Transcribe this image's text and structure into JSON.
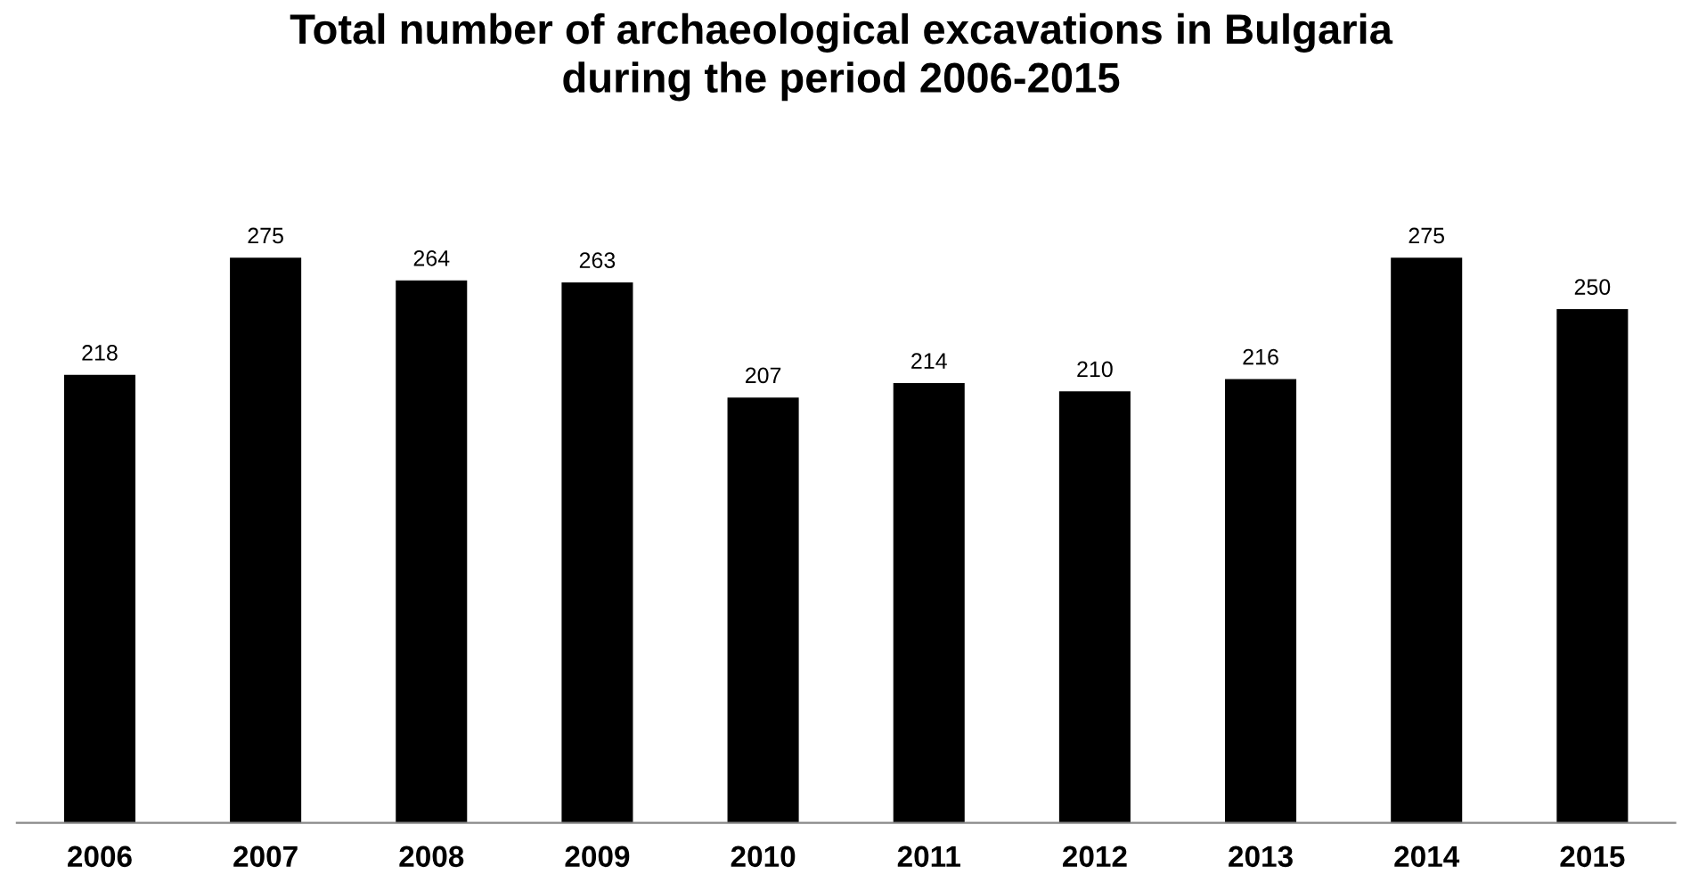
{
  "chart_data": {
    "type": "bar",
    "title": "Total number of archaeological excavations in Bulgaria\nduring the period 2006-2015",
    "categories": [
      "2006",
      "2007",
      "2008",
      "2009",
      "2010",
      "2011",
      "2012",
      "2013",
      "2014",
      "2015"
    ],
    "values": [
      218,
      275,
      264,
      263,
      207,
      214,
      210,
      216,
      275,
      250
    ],
    "color": "#000000",
    "data_labels": true,
    "grid": false,
    "legend": false
  }
}
